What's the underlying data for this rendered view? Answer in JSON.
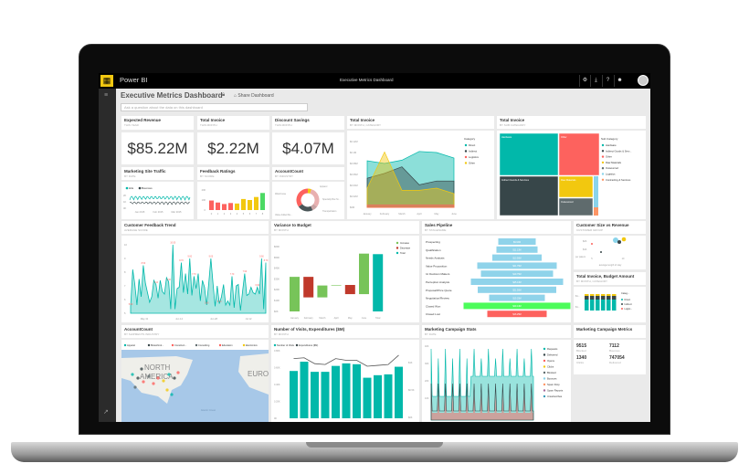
{
  "app": {
    "name": "Power BI",
    "window_title": "Executive Metrics Dashboard",
    "logo_icon": "grid-icon",
    "toolbar_icons": [
      "gear-icon",
      "download-icon",
      "help-icon",
      "smiley-icon"
    ],
    "avatar_icon": "user-avatar-icon",
    "nav_icon": "hamburger-icon",
    "expand_icon": "expand-icon"
  },
  "dashboard": {
    "title": "Executive Metrics Dashboard",
    "share_label": "Share Dashboard",
    "qa_placeholder": "Ask a question about the data on this dashboard"
  },
  "kpis": [
    {
      "title": "Expected Revenue",
      "subtitle": "THIS YEAR",
      "value": "$85.22M"
    },
    {
      "title": "Total Invoice",
      "subtitle": "THIS MONTH",
      "value": "$2.22M"
    },
    {
      "title": "Discount Savings",
      "subtitle": "THIS MONTH",
      "value": "$4.07M"
    }
  ],
  "traffic": {
    "title": "Marketing Site Traffic",
    "subtitle": "BY DATE",
    "legend": [
      "Hits",
      "Bounces"
    ],
    "yticks": [
      "2K",
      "1K",
      "0K"
    ],
    "xticks": [
      "Jan 2015",
      "Feb 2015",
      "Mar 2015"
    ]
  },
  "ratings": {
    "title": "Feedback Ratings",
    "subtitle": "BY SCORE",
    "yticks": [
      "200",
      "100",
      "0"
    ],
    "categories": [
      "0",
      "1",
      "2",
      "3",
      "4",
      "5",
      "6",
      "7",
      "8"
    ],
    "values": [
      95,
      75,
      60,
      70,
      65,
      110,
      100,
      130,
      170
    ],
    "colors": [
      "#fd625e",
      "#fd625e",
      "#fd625e",
      "#fd625e",
      "#f2c80f",
      "#f2c80f",
      "#f2c80f",
      "#f2c80f",
      "#4cd964"
    ]
  },
  "accountcount": {
    "title": "AccountCount",
    "subtitle": "BY INDUSTRY",
    "segments": [
      {
        "label": "Apparel",
        "value": 5,
        "color": "#f2c80f"
      },
      {
        "label": "Specialty Box St...",
        "value": 30,
        "color": "#e8b0b0"
      },
      {
        "label": "Transportation",
        "value": 8,
        "color": "#c9a3a3"
      },
      {
        "label": "Value Added Re...",
        "value": 22,
        "color": "#4a5658"
      },
      {
        "label": "Warehouse",
        "value": 35,
        "color": "#fd625e"
      }
    ]
  },
  "area": {
    "title": "Total Invoice",
    "subtitle": "BY MONTH, CATEGORY",
    "legend_title": "Category",
    "yticks": [
      "$0.12M",
      "$0.1M",
      "$0.08M",
      "$0.06M",
      "$0.04M",
      "$0.02M",
      "$0M"
    ],
    "ymax": 0.12,
    "months": [
      "January",
      "February",
      "March",
      "April",
      "May",
      "June"
    ],
    "series": [
      {
        "name": "Direct",
        "color": "#01b8aa",
        "values": [
          0.085,
          0.08,
          0.086,
          0.102,
          0.1,
          0.09
        ]
      },
      {
        "name": "Indirect",
        "color": "#374649",
        "values": [
          0.053,
          0.062,
          0.074,
          0.041,
          0.048,
          0.048
        ]
      },
      {
        "name": "Logistics",
        "color": "#fd625e",
        "values": [
          0.004,
          0.004,
          0.004,
          0.004,
          0.004,
          0.004
        ]
      },
      {
        "name": "Other",
        "color": "#f2c80f",
        "values": [
          0.035,
          0.101,
          0.031,
          0.031,
          0.035,
          0.025
        ]
      }
    ]
  },
  "treemap": {
    "title": "Total Invoice",
    "subtitle": "BY SUB CATEGORY",
    "legend_title": "Sub Category",
    "items": [
      {
        "name": "Hardware",
        "color": "#01b8aa"
      },
      {
        "name": "Indirect Goods & Serv...",
        "color": "#374649"
      },
      {
        "name": "Other",
        "color": "#fd625e"
      },
      {
        "name": "Raw Materials",
        "color": "#f2c80f"
      },
      {
        "name": "Outsourced",
        "color": "#5f6b6d"
      },
      {
        "name": "Logistics",
        "color": "#8ad4eb"
      },
      {
        "name": "Contracting & Services",
        "color": "#fe9666"
      }
    ],
    "tiles": [
      "Hardware",
      "Other",
      "Indirect Goods & Services",
      "Raw Materials",
      "Outsourced"
    ]
  },
  "trend": {
    "title": "Customer Feedback Trend",
    "subtitle": "AVERAGE SCORE",
    "yticks": [
      "10",
      "9",
      "8",
      "7",
      "6",
      "5"
    ],
    "xticks": [
      "May 31",
      "Jun 14",
      "Jun 28",
      "Jul 12"
    ],
    "values": [
      5.5,
      8.2,
      7.1,
      5.6,
      7.5,
      6.2,
      8.5,
      7.2,
      6.5,
      5.8,
      6.2,
      7.4,
      7.1,
      6.1,
      7.4,
      6.6,
      6.4,
      7.6,
      7.3,
      5.3,
      10,
      5.3,
      6.8,
      6.9,
      8.7,
      6.5,
      7.9,
      6.4,
      9,
      6.3,
      7.7,
      6.8,
      7.9,
      5.9,
      7.4,
      6.9,
      5.6,
      7.2,
      9,
      7.2,
      5.5,
      7.0,
      5.7,
      6.2,
      7.1,
      5.6,
      5.9,
      5.6,
      7.7,
      5.4,
      7.0,
      7.1,
      5.2,
      6.6,
      7.9,
      6.3,
      6.4,
      6.9,
      6.5,
      6.4,
      6.9,
      6.4,
      9,
      5.3,
      8.7
    ]
  },
  "variance": {
    "title": "Variance to Budget",
    "subtitle": "BY MONTH",
    "yticks": [
      "$60K",
      "$50K",
      "$40K",
      "$30K",
      "$20K",
      "$10K",
      "$0K"
    ],
    "legend": [
      {
        "name": "Increase",
        "color": "#77c459"
      },
      {
        "name": "Decrease",
        "color": "#c0392b"
      },
      {
        "name": "Total",
        "color": "#01b8aa"
      }
    ],
    "categories": [
      "January",
      "February",
      "March",
      "April",
      "May",
      "June",
      "Total"
    ],
    "deltas": [
      32,
      -19,
      11,
      0.5,
      -8.5,
      37.5,
      53
    ]
  },
  "pipeline": {
    "title": "Sales Pipeline",
    "subtitle": "BY STAGENAME",
    "stages": [
      {
        "name": "Prospecting",
        "value": "$9.63M",
        "width": 41
      },
      {
        "name": "Qualification",
        "value": "$11.13M",
        "width": 45
      },
      {
        "name": "Needs Analysis",
        "value": "$13.50M",
        "width": 54
      },
      {
        "name": "Value Proposition",
        "value": "$21.75M",
        "width": 87
      },
      {
        "name": "Id. Decision Makers",
        "value": "$19.75M",
        "width": 79
      },
      {
        "name": "Perception Analysis",
        "value": "$25.13M",
        "width": 101
      },
      {
        "name": "Proposal/Price Quote",
        "value": "$21.50M",
        "width": 86
      },
      {
        "name": "Negotiation/Review",
        "value": "$15.25M",
        "width": 61
      },
      {
        "name": "Closed Won",
        "value": "$29.13M",
        "width": 117,
        "color": "#4cfc5a"
      },
      {
        "name": "Closed Lost",
        "value": "$16.25M",
        "width": 65,
        "color": "#fd625e"
      }
    ]
  },
  "custsize": {
    "title": "Customer Size vs Revenue",
    "subtitle": "CUSTOMER GROUP",
    "yticks": [
      "$2K",
      "$1K"
    ],
    "xticks": [
      "5",
      "10"
    ],
    "xlabel": "average length of stay",
    "ylabel": "per patient"
  },
  "budget": {
    "title": "Total Invoice, Budget Amount",
    "subtitle": "BY MONTH, CATEGORY",
    "legend_title": "Categ...",
    "legend": [
      {
        "name": "Direct",
        "color": "#01b8aa"
      },
      {
        "name": "Indirect",
        "color": "#374649"
      },
      {
        "name": "Logist...",
        "color": "#fd625e"
      }
    ],
    "yticks": [
      "$1...",
      "$1..."
    ]
  },
  "map": {
    "title": "AccountCount",
    "subtitle": "BY SHIPMENTS INDUSTRY",
    "legend": [
      {
        "name": "Apparel",
        "color": "#01b8aa"
      },
      {
        "name": "Biotechnol...",
        "color": "#374649"
      },
      {
        "name": "Construct...",
        "color": "#fd625e"
      },
      {
        "name": "Consulting",
        "color": "#5f6b6d"
      },
      {
        "name": "Education",
        "color": "#fd625e"
      },
      {
        "name": "Electronics",
        "color": "#f2c80f"
      }
    ],
    "labels": [
      "NORTH",
      "AMERICA",
      "EURO",
      "Atlantic Ocean"
    ]
  },
  "visits": {
    "title": "Number of Visits, Expenditures ($M)",
    "subtitle": "BY MONTH",
    "legend": [
      "Number of Visits",
      "Expenditures ($M)"
    ],
    "yticks": [
      "0.80K",
      "0.60K",
      "0.40K",
      "0.20K",
      "0K"
    ],
    "y2ticks": [
      "$1K",
      "$0.5K",
      "$0K"
    ],
    "visits": [
      0.56,
      0.67,
      0.55,
      0.55,
      0.62,
      0.65,
      0.64,
      0.48,
      0.51,
      0.52,
      0.61
    ],
    "spend": [
      0.62,
      0.63,
      0.56,
      0.55,
      0.62,
      0.6,
      0.6,
      0.53,
      0.54,
      0.55,
      0.66
    ]
  },
  "campaign": {
    "title": "Marketing Campaign Stats",
    "subtitle": "BY DATE",
    "yticks": [
      "40K",
      "30K",
      "20K",
      "10K"
    ],
    "legend": [
      {
        "name": "Requests",
        "color": "#01b8aa"
      },
      {
        "name": "Delivered",
        "color": "#374649"
      },
      {
        "name": "Opens",
        "color": "#fd625e"
      },
      {
        "name": "Clicks",
        "color": "#f2c80f"
      },
      {
        "name": "Blocked",
        "color": "#5f6b6d"
      },
      {
        "name": "Bounces",
        "color": "#8ad4eb"
      },
      {
        "name": "Spam Drop",
        "color": "#fe9666"
      },
      {
        "name": "Spam Reports",
        "color": "#a66999"
      },
      {
        "name": "Unsubscribes",
        "color": "#3599b8"
      }
    ]
  },
  "metrics": {
    "title": "Marketing Campaign Metrics",
    "items": [
      {
        "value": "9515",
        "label": "Blocked"
      },
      {
        "value": "7112",
        "label": "Bounces"
      },
      {
        "value": "1340",
        "label": "Clicks"
      },
      {
        "value": "747054",
        "label": "Delivered"
      }
    ]
  }
}
